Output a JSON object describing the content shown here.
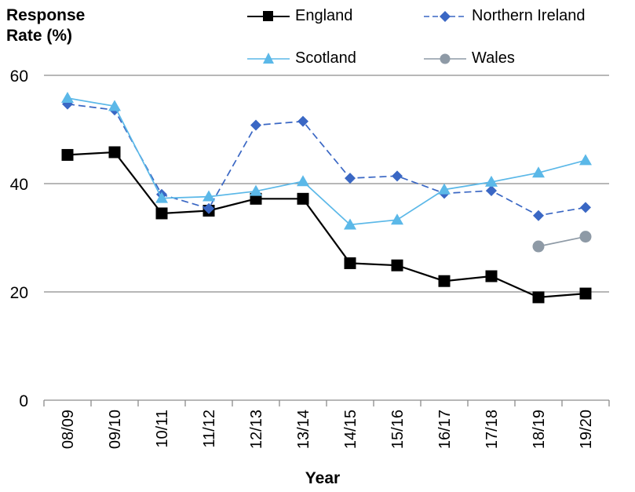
{
  "chart_data": {
    "type": "line",
    "ylabel_lines": [
      "Response",
      "Rate (%)"
    ],
    "xlabel": "Year",
    "categories": [
      "08/09",
      "09/10",
      "10/11",
      "11/12",
      "12/13",
      "13/14",
      "14/15",
      "15/16",
      "16/17",
      "17/18",
      "18/19",
      "19/20"
    ],
    "ylim": [
      0,
      60
    ],
    "yticks": [
      0,
      20,
      40,
      60
    ],
    "grid": true,
    "legend": "top",
    "series": [
      {
        "name": "England",
        "color": "#000000",
        "marker": "square",
        "dash": "solid",
        "values": [
          45.3,
          45.8,
          34.5,
          35.0,
          37.2,
          37.2,
          25.3,
          24.9,
          22.0,
          22.9,
          19.0,
          19.7
        ]
      },
      {
        "name": "Northern Ireland",
        "color": "#3A67C4",
        "marker": "diamond",
        "dash": "dashed",
        "values": [
          54.7,
          53.6,
          38.0,
          35.4,
          50.8,
          51.5,
          41.0,
          41.4,
          38.2,
          38.7,
          34.1,
          35.6
        ]
      },
      {
        "name": "Scotland",
        "color": "#5BB8E8",
        "marker": "triangle",
        "dash": "solid",
        "values": [
          55.8,
          54.3,
          37.3,
          37.6,
          38.6,
          40.4,
          32.4,
          33.3,
          38.9,
          40.3,
          42.0,
          44.3
        ]
      },
      {
        "name": "Wales",
        "color": "#8E9AA6",
        "marker": "circle",
        "dash": "solid",
        "values": [
          null,
          null,
          null,
          null,
          null,
          null,
          null,
          null,
          null,
          null,
          28.4,
          30.2
        ]
      }
    ]
  }
}
